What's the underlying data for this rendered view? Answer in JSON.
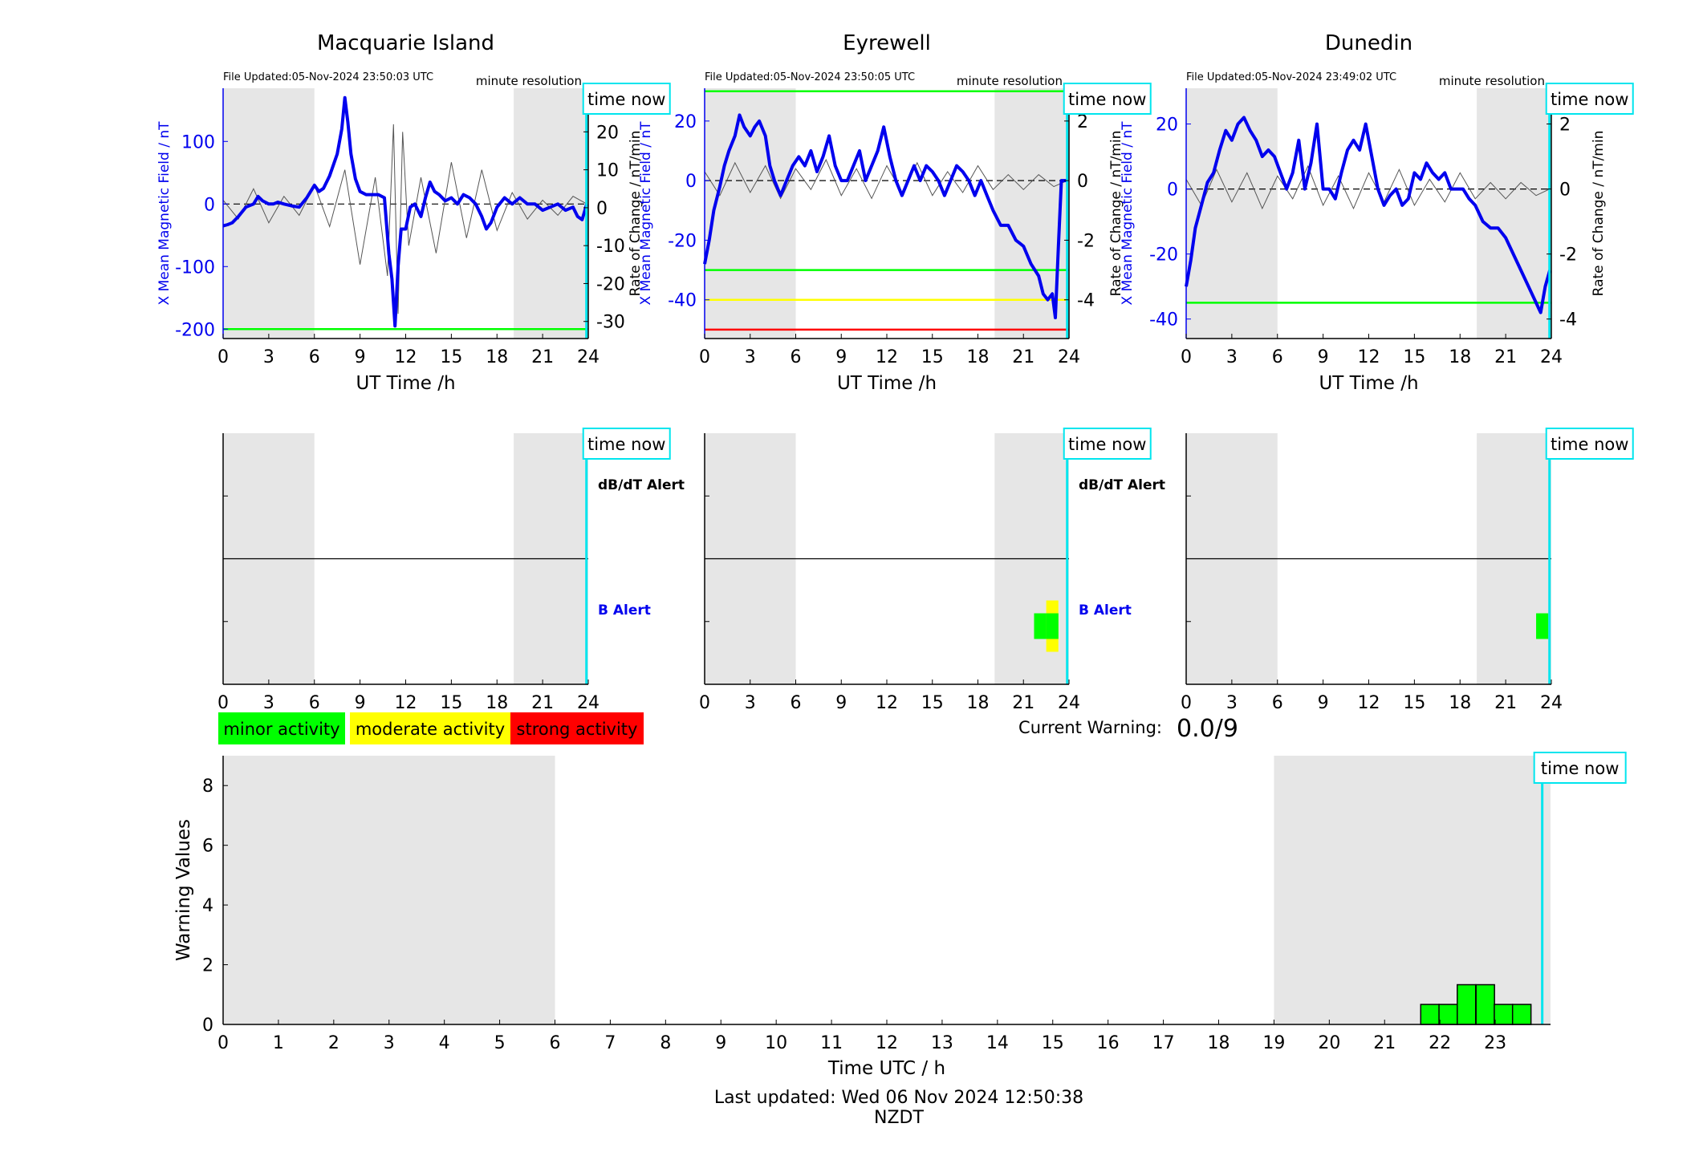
{
  "footer": {
    "last_updated": "Last updated: Wed 06 Nov 2024 12:50:38 NZDT"
  },
  "legend": {
    "minor": {
      "label": "minor activity",
      "color": "#00ff00"
    },
    "moderate": {
      "label": "moderate activity",
      "color": "#ffff00"
    },
    "strong": {
      "label": "strong activity",
      "color": "#ff0000"
    }
  },
  "current_warning": {
    "label": "Current Warning:",
    "value": "0.0/9"
  },
  "time_now_label": "time now",
  "colors": {
    "field": "#0000ee",
    "rate": "#555555",
    "night_shade": "#e6e6e6",
    "time_now": "#00e5ee"
  },
  "chart_data": [
    {
      "type": "line",
      "title": "Macquarie Island",
      "file_updated": "File Updated:05-Nov-2024 23:50:03 UTC",
      "resolution": "minute resolution",
      "xlabel": "UT Time /h",
      "ylabel": "X Mean Magnetic Field / nT",
      "y2label": "Rate of Change / nT/min",
      "xlim": [
        0,
        24
      ],
      "ylim": [
        -215,
        185
      ],
      "y2lim": [
        -34.5,
        31.5
      ],
      "xticks": [
        0,
        3,
        6,
        9,
        12,
        15,
        18,
        21,
        24
      ],
      "yticks": [
        -200,
        -100,
        0,
        100
      ],
      "y2ticks": [
        -30,
        -20,
        -10,
        0,
        10,
        20,
        30
      ],
      "night_shade": [
        [
          0,
          6
        ],
        [
          19.1,
          24
        ]
      ],
      "time_now": 23.88,
      "thresholds": [
        {
          "value": -200,
          "color": "#00ff00"
        }
      ],
      "series": [
        {
          "x": [
            0,
            0.3,
            0.6,
            1,
            1.5,
            2,
            2.3,
            2.6,
            3,
            3.3,
            3.6,
            4,
            4.5,
            5,
            5.5,
            6,
            6.3,
            6.6,
            7,
            7.5,
            7.8,
            8,
            8.2,
            8.4,
            8.7,
            9,
            9.4,
            9.8,
            10.2,
            10.6,
            10.9,
            11.1,
            11.3,
            11.5,
            11.7,
            12,
            12.3,
            12.6,
            13,
            13.3,
            13.6,
            13.9,
            14.2,
            14.6,
            15,
            15.4,
            15.8,
            16.2,
            16.6,
            17,
            17.3,
            17.6,
            18,
            18.5,
            19,
            19.5,
            20,
            20.5,
            21,
            21.5,
            22,
            22.5,
            23,
            23.3,
            23.6,
            23.9
          ],
          "values": [
            -35,
            -33,
            -30,
            -20,
            -5,
            0,
            12,
            5,
            0,
            0,
            3,
            0,
            -3,
            -5,
            10,
            30,
            20,
            25,
            45,
            80,
            120,
            170,
            130,
            80,
            40,
            20,
            15,
            15,
            15,
            10,
            -80,
            -120,
            -195,
            -100,
            -40,
            -40,
            -5,
            0,
            -20,
            10,
            35,
            20,
            15,
            5,
            10,
            0,
            15,
            10,
            0,
            -20,
            -40,
            -30,
            -5,
            10,
            0,
            10,
            0,
            0,
            -10,
            -5,
            0,
            -10,
            -5,
            -20,
            -25,
            0
          ]
        },
        {
          "x": [
            0,
            1,
            2,
            3,
            4,
            5,
            6,
            7,
            8,
            9,
            10,
            10.8,
            11.2,
            11.5,
            11.8,
            12.2,
            13,
            14,
            15,
            16,
            17,
            18,
            19,
            20,
            21,
            22,
            23,
            23.9
          ],
          "values": [
            2,
            -3,
            5,
            -4,
            3,
            -2,
            6,
            -5,
            10,
            -15,
            8,
            -18,
            22,
            -28,
            20,
            -10,
            8,
            -12,
            12,
            -8,
            10,
            -6,
            4,
            -3,
            2,
            -2,
            3,
            1
          ]
        }
      ]
    },
    {
      "type": "line",
      "title": "Eyrewell",
      "file_updated": "File Updated:05-Nov-2024 23:50:05 UTC",
      "resolution": "minute resolution",
      "xlabel": "UT Time /h",
      "ylabel": "X Mean Magnetic Field / nT",
      "y2label": "Rate of Change / nT/min",
      "xlim": [
        0,
        24
      ],
      "ylim": [
        -53,
        31
      ],
      "y2lim": [
        -5.3,
        3.1
      ],
      "xticks": [
        0,
        3,
        6,
        9,
        12,
        15,
        18,
        21,
        24
      ],
      "yticks": [
        -40,
        -20,
        0,
        20
      ],
      "y2ticks": [
        -4,
        -2,
        0,
        2
      ],
      "night_shade": [
        [
          0,
          6
        ],
        [
          19.1,
          24
        ]
      ],
      "time_now": 23.88,
      "thresholds": [
        {
          "value": 30,
          "color": "#00ff00"
        },
        {
          "value": -30,
          "color": "#00ff00"
        },
        {
          "value": -40,
          "color": "#ffff00"
        },
        {
          "value": -50,
          "color": "#ff0000"
        }
      ],
      "series": [
        {
          "x": [
            0,
            0.3,
            0.6,
            1,
            1.3,
            1.6,
            2,
            2.3,
            2.6,
            3,
            3.3,
            3.6,
            4,
            4.3,
            4.6,
            5,
            5.4,
            5.8,
            6.2,
            6.6,
            7,
            7.4,
            7.8,
            8.2,
            8.6,
            9,
            9.4,
            9.8,
            10.2,
            10.6,
            11,
            11.4,
            11.8,
            12.2,
            12.6,
            13,
            13.4,
            13.8,
            14.2,
            14.6,
            15,
            15.4,
            15.8,
            16.2,
            16.6,
            17,
            17.4,
            17.8,
            18.2,
            18.6,
            19,
            19.5,
            20,
            20.5,
            21,
            21.5,
            22,
            22.3,
            22.6,
            22.9,
            23.1,
            23.3,
            23.5,
            23.7,
            23.9
          ],
          "values": [
            -28,
            -20,
            -10,
            -2,
            5,
            10,
            15,
            22,
            18,
            15,
            18,
            20,
            15,
            5,
            0,
            -5,
            0,
            5,
            8,
            5,
            10,
            3,
            8,
            15,
            5,
            0,
            0,
            5,
            10,
            0,
            5,
            10,
            18,
            8,
            0,
            -5,
            0,
            5,
            0,
            5,
            3,
            0,
            -5,
            0,
            5,
            3,
            0,
            -5,
            0,
            -5,
            -10,
            -15,
            -15,
            -20,
            -22,
            -28,
            -32,
            -38,
            -40,
            -38,
            -46,
            -22,
            0,
            0,
            0
          ]
        },
        {
          "x": [
            0,
            1,
            2,
            3,
            4,
            5,
            6,
            7,
            8,
            9,
            10,
            11,
            12,
            13,
            14,
            15,
            16,
            17,
            18,
            19,
            20,
            21,
            22,
            23,
            23.9
          ],
          "values": [
            0.3,
            -0.5,
            0.6,
            -0.4,
            0.5,
            -0.6,
            0.4,
            -0.3,
            0.7,
            -0.5,
            0.4,
            -0.6,
            0.5,
            -0.4,
            0.6,
            -0.5,
            0.3,
            -0.4,
            0.5,
            -0.3,
            0.2,
            -0.3,
            0.2,
            -0.2,
            0
          ]
        }
      ]
    },
    {
      "type": "line",
      "title": "Dunedin",
      "file_updated": "File Updated:05-Nov-2024 23:49:02 UTC",
      "resolution": "minute resolution",
      "xlabel": "UT Time /h",
      "ylabel": "X Mean Magnetic Field / nT",
      "y2label": "Rate of Change / nT/min",
      "xlim": [
        0,
        24
      ],
      "ylim": [
        -46,
        31
      ],
      "y2lim": [
        -4.6,
        3.1
      ],
      "xticks": [
        0,
        3,
        6,
        9,
        12,
        15,
        18,
        21,
        24
      ],
      "yticks": [
        -40,
        -20,
        0,
        20
      ],
      "y2ticks": [
        -4,
        -2,
        0,
        2
      ],
      "night_shade": [
        [
          0,
          6
        ],
        [
          19.1,
          24
        ]
      ],
      "time_now": 23.88,
      "thresholds": [
        {
          "value": -35,
          "color": "#00ff00"
        }
      ],
      "series": [
        {
          "x": [
            0,
            0.3,
            0.6,
            1,
            1.4,
            1.8,
            2.2,
            2.6,
            3,
            3.4,
            3.8,
            4.2,
            4.6,
            5,
            5.4,
            5.8,
            6.2,
            6.6,
            7,
            7.4,
            7.8,
            8.2,
            8.6,
            9,
            9.4,
            9.8,
            10.2,
            10.6,
            11,
            11.4,
            11.8,
            12.2,
            12.6,
            13,
            13.4,
            13.8,
            14.2,
            14.6,
            15,
            15.4,
            15.8,
            16.2,
            16.6,
            17,
            17.4,
            17.8,
            18.2,
            18.6,
            19,
            19.5,
            20,
            20.5,
            21,
            21.5,
            22,
            22.5,
            23,
            23.3,
            23.6,
            23.9
          ],
          "values": [
            -30,
            -22,
            -12,
            -5,
            2,
            5,
            12,
            18,
            15,
            20,
            22,
            18,
            15,
            10,
            12,
            10,
            5,
            0,
            5,
            15,
            0,
            8,
            20,
            0,
            0,
            -3,
            5,
            12,
            15,
            12,
            20,
            10,
            0,
            -5,
            -2,
            0,
            -5,
            -3,
            5,
            3,
            8,
            5,
            3,
            5,
            0,
            0,
            0,
            -3,
            -5,
            -10,
            -12,
            -12,
            -15,
            -20,
            -25,
            -30,
            -35,
            -38,
            -30,
            -25
          ]
        },
        {
          "x": [
            0,
            1,
            2,
            3,
            4,
            5,
            6,
            7,
            8,
            9,
            10,
            11,
            12,
            13,
            14,
            15,
            16,
            17,
            18,
            19,
            20,
            21,
            22,
            23,
            23.9
          ],
          "values": [
            0.3,
            -0.5,
            0.6,
            -0.4,
            0.5,
            -0.6,
            0.4,
            -0.3,
            0.7,
            -0.5,
            0.4,
            -0.6,
            0.5,
            -0.4,
            0.6,
            -0.5,
            0.3,
            -0.4,
            0.5,
            -0.3,
            0.2,
            -0.3,
            0.2,
            -0.2,
            0
          ]
        }
      ]
    },
    {
      "type": "heatmap",
      "station": "Macquarie Island",
      "xlim": [
        0,
        24
      ],
      "xticks": [
        0,
        3,
        6,
        9,
        12,
        15,
        18,
        21,
        24
      ],
      "night_shade": [
        [
          0,
          6
        ],
        [
          19.1,
          24
        ]
      ],
      "time_now": 23.88,
      "row_labels": [
        "dB/dT Alert",
        "B Alert"
      ],
      "alerts": []
    },
    {
      "type": "heatmap",
      "station": "Eyrewell",
      "xlim": [
        0,
        24
      ],
      "xticks": [
        0,
        3,
        6,
        9,
        12,
        15,
        18,
        21,
        24
      ],
      "night_shade": [
        [
          0,
          6
        ],
        [
          19.1,
          24
        ]
      ],
      "time_now": 23.88,
      "row_labels": [
        "dB/dT Alert",
        "B Alert"
      ],
      "alerts": [
        {
          "x0": 21.7,
          "x1": 23.3,
          "level": "minor"
        },
        {
          "x0": 22.5,
          "x1": 23.3,
          "level": "moderate"
        }
      ]
    },
    {
      "type": "heatmap",
      "station": "Dunedin",
      "xlim": [
        0,
        24
      ],
      "xticks": [
        0,
        3,
        6,
        9,
        12,
        15,
        18,
        21,
        24
      ],
      "night_shade": [
        [
          0,
          6
        ],
        [
          19.1,
          24
        ]
      ],
      "time_now": 23.88,
      "row_labels": [],
      "alerts": [
        {
          "x0": 23.0,
          "x1": 23.8,
          "level": "minor"
        }
      ]
    },
    {
      "type": "bar",
      "xlabel": "Time UTC / h",
      "ylabel": "Warning Values",
      "xlim": [
        0,
        24
      ],
      "ylim": [
        0,
        9
      ],
      "xticks": [
        0,
        1,
        2,
        3,
        4,
        5,
        6,
        7,
        8,
        9,
        10,
        11,
        12,
        13,
        14,
        15,
        16,
        17,
        18,
        19,
        20,
        21,
        22,
        23
      ],
      "yticks": [
        0,
        2,
        4,
        6,
        8
      ],
      "night_shade": [
        [
          0,
          6
        ],
        [
          19,
          24
        ]
      ],
      "time_now": 23.85,
      "x": [
        21.82,
        22.15,
        22.48,
        22.82,
        23.15,
        23.48
      ],
      "values": [
        0.67,
        0.67,
        1.33,
        1.33,
        0.67,
        0.67
      ]
    }
  ]
}
